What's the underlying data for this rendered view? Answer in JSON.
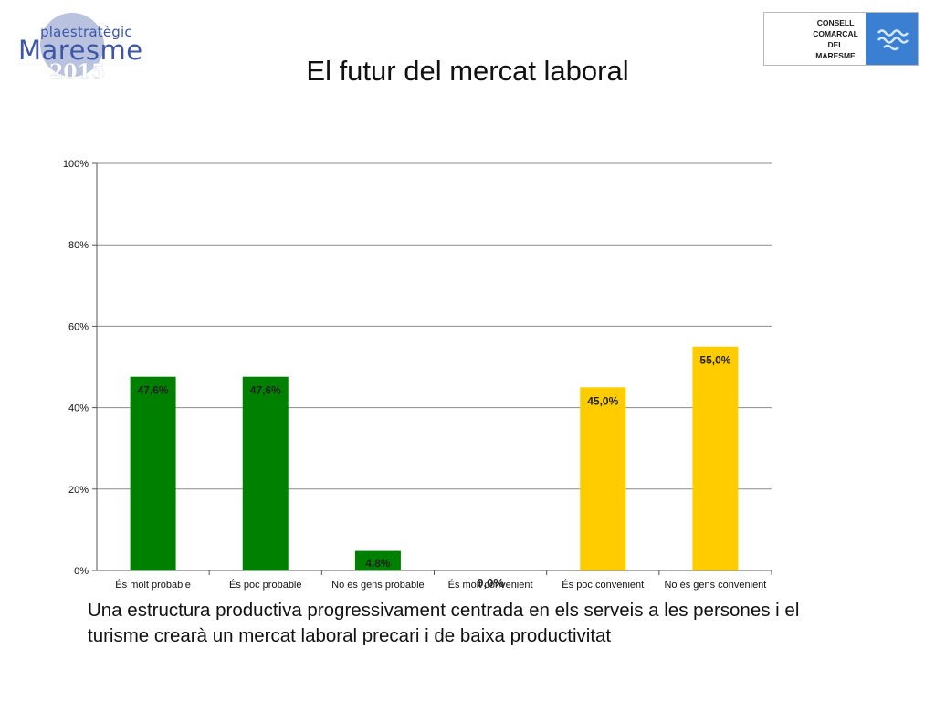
{
  "header": {
    "title": "El futur del mercat laboral",
    "logo_left": {
      "line1": "plaestratègic",
      "line2": "Maresme",
      "line3": "2015"
    },
    "logo_right": {
      "lines": [
        "CONSELL",
        "COMARCAL",
        "DEL",
        "MARESME"
      ]
    }
  },
  "caption": "Una estructura productiva progressivament centrada en els serveis a les persones i el turisme crearà un mercat laboral precari i de baixa productivitat",
  "colors": {
    "green": "#008000",
    "yellow": "#ffcc00",
    "grid": "#8c8c8c",
    "emblem": "#3a7fd1"
  },
  "chart_data": {
    "type": "bar",
    "title": "",
    "xlabel": "",
    "ylabel": "",
    "ylim": [
      0,
      100
    ],
    "yticks": [
      "0%",
      "20%",
      "40%",
      "60%",
      "80%",
      "100%"
    ],
    "grid": true,
    "legend": "none",
    "categories": [
      "És molt probable",
      "És poc probable",
      "No és gens probable",
      "És molt convenient",
      "És poc convenient",
      "No és gens convenient"
    ],
    "values": [
      47.6,
      47.6,
      4.8,
      0.0,
      45.0,
      55.0
    ],
    "labels": [
      "47,6%",
      "47,6%",
      "4,8%",
      "0,0%",
      "45,0%",
      "55,0%"
    ],
    "bar_colors": [
      "#008000",
      "#008000",
      "#008000",
      "#ffcc00",
      "#ffcc00",
      "#ffcc00"
    ]
  }
}
